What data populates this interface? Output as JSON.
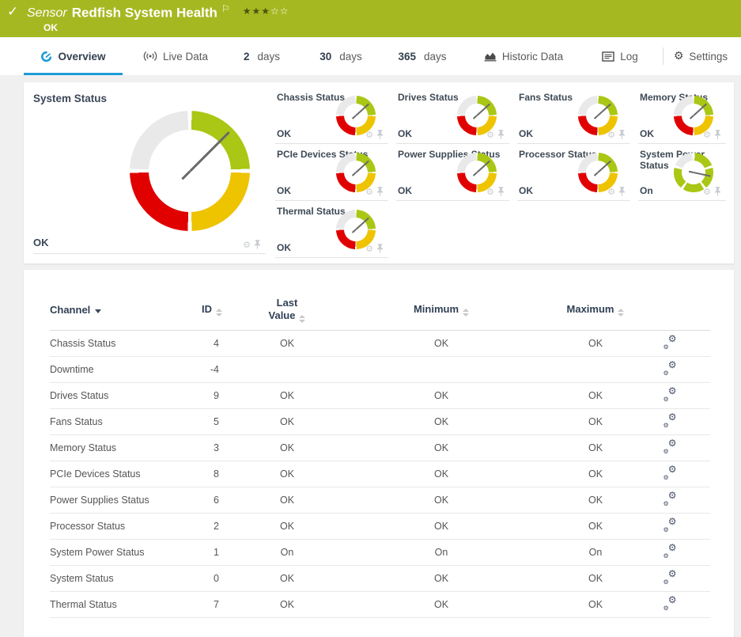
{
  "colors": {
    "header_green": "#a6b821",
    "gauge_green": "#a9c714",
    "gauge_yellow": "#eec300",
    "gauge_red": "#e10000",
    "gauge_gray": "#e9e9e9",
    "accent_blue": "#1e9cd7",
    "page_background": "#f0f0f1"
  },
  "header": {
    "kind_label": "Sensor",
    "title": "Redfish System Health",
    "status": "OK",
    "rating": {
      "filled": 3,
      "total": 5
    }
  },
  "tabs": [
    {
      "label": "Overview",
      "icon": "gauge-icon",
      "active": true
    },
    {
      "label": "Live Data",
      "icon": "live-data-icon",
      "active": false
    },
    {
      "number": "2",
      "label": "days",
      "active": false
    },
    {
      "number": "30",
      "label": "days",
      "active": false
    },
    {
      "number": "365",
      "label": "days",
      "active": false
    },
    {
      "label": "Historic Data",
      "icon": "historic-data-icon",
      "active": false
    },
    {
      "label": "Log",
      "icon": "log-icon",
      "active": false
    },
    {
      "label": "Settings",
      "icon": "settings-icon",
      "active": false
    }
  ],
  "system_gauge": {
    "title": "System Status",
    "value": "OK",
    "type": "standard",
    "needle_deg": 45
  },
  "mini_gauges": [
    {
      "title": "Chassis Status",
      "value": "OK",
      "type": "standard",
      "needle_deg": 48
    },
    {
      "title": "Drives Status",
      "value": "OK",
      "type": "standard",
      "needle_deg": 48
    },
    {
      "title": "Fans Status",
      "value": "OK",
      "type": "standard",
      "needle_deg": 48
    },
    {
      "title": "Memory Status",
      "value": "OK",
      "type": "standard",
      "needle_deg": 48
    },
    {
      "title": "PCIe Devices Status",
      "value": "OK",
      "type": "standard",
      "needle_deg": 48
    },
    {
      "title": "Power Supplies Status",
      "value": "OK",
      "type": "standard",
      "needle_deg": 48
    },
    {
      "title": "Processor Status",
      "value": "OK",
      "type": "standard",
      "needle_deg": 48
    },
    {
      "title": "System Power Status",
      "value": "On",
      "type": "power",
      "needle_deg": 102
    },
    {
      "title": "Thermal Status",
      "value": "OK",
      "type": "standard",
      "needle_deg": 48
    }
  ],
  "table": {
    "columns": [
      {
        "label": "Channel",
        "sort": "sorted-desc"
      },
      {
        "label": "ID",
        "sort": "sortable"
      },
      {
        "label": "Last Value",
        "lines": [
          "Last",
          "Value"
        ],
        "sort": "sortable"
      },
      {
        "label": "Minimum",
        "sort": "sortable"
      },
      {
        "label": "Maximum",
        "sort": "sortable"
      }
    ],
    "rows": [
      [
        "Chassis Status",
        "4",
        "OK",
        "OK",
        "OK"
      ],
      [
        "Downtime",
        "-4",
        "",
        "",
        ""
      ],
      [
        "Drives Status",
        "9",
        "OK",
        "OK",
        "OK"
      ],
      [
        "Fans Status",
        "5",
        "OK",
        "OK",
        "OK"
      ],
      [
        "Memory Status",
        "3",
        "OK",
        "OK",
        "OK"
      ],
      [
        "PCIe Devices Status",
        "8",
        "OK",
        "OK",
        "OK"
      ],
      [
        "Power Supplies Status",
        "6",
        "OK",
        "OK",
        "OK"
      ],
      [
        "Processor Status",
        "2",
        "OK",
        "OK",
        "OK"
      ],
      [
        "System Power Status",
        "1",
        "On",
        "On",
        "On"
      ],
      [
        "System Status",
        "0",
        "OK",
        "OK",
        "OK"
      ],
      [
        "Thermal Status",
        "7",
        "OK",
        "OK",
        "OK"
      ]
    ]
  }
}
